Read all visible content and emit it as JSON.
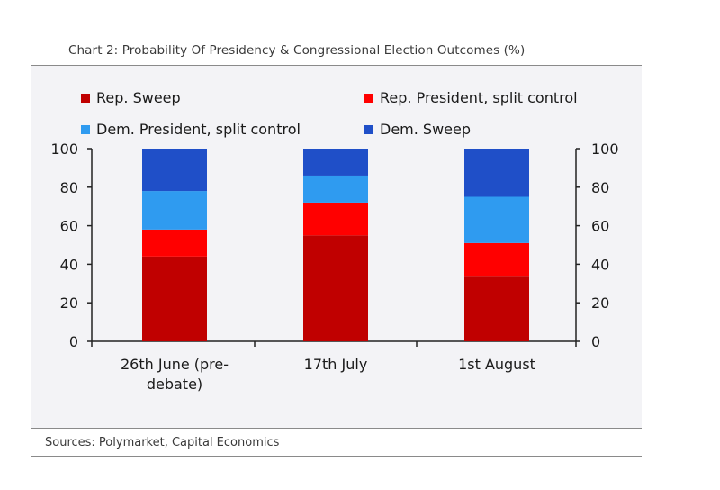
{
  "header": {
    "title": "Chart 2: Probability Of Presidency & Congressional Election Outcomes (%)"
  },
  "footer": {
    "source": "Sources: Polymarket, Capital Economics"
  },
  "chart_data": {
    "type": "bar",
    "stacked": true,
    "title": "Chart 2: Probability Of Presidency & Congressional Election Outcomes (%)",
    "xlabel": "",
    "ylabel": "",
    "ylim": [
      0,
      100
    ],
    "yticks": [
      0,
      20,
      40,
      60,
      80,
      100
    ],
    "categories": [
      [
        "26th June (pre-",
        "debate)"
      ],
      [
        "17th July"
      ],
      [
        "1st August"
      ]
    ],
    "series": [
      {
        "name": "Rep. Sweep",
        "color": "#c00000",
        "values": [
          44,
          55,
          34
        ]
      },
      {
        "name": "Rep. President, split control",
        "color": "#ff0000",
        "values": [
          14,
          17,
          17
        ]
      },
      {
        "name": "Dem. President, split control",
        "color": "#2f9bf0",
        "values": [
          20,
          14,
          24
        ]
      },
      {
        "name": "Dem. Sweep",
        "color": "#1f4fc8",
        "values": [
          22,
          14,
          25
        ]
      }
    ],
    "legend_position": "top",
    "grid": false
  }
}
